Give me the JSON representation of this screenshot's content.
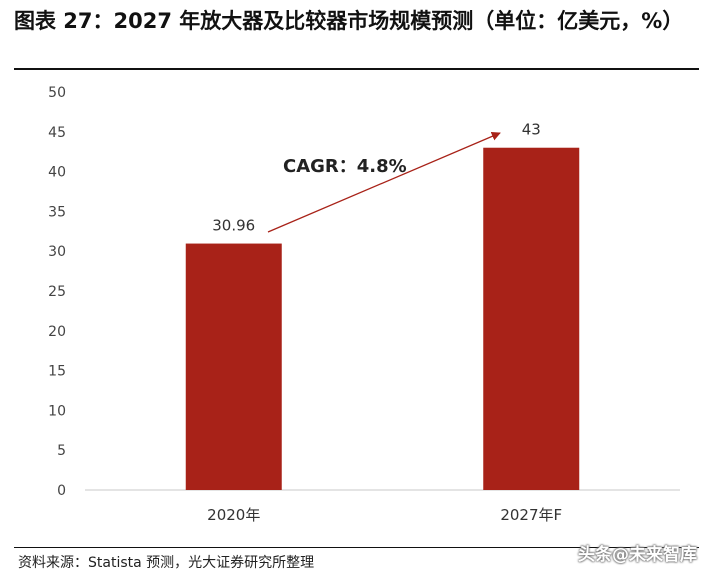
{
  "title": "图表 27：2027 年放大器及比较器市场规模预测（单位：亿美元，%）",
  "source": "资料来源：Statista 预测，光大证券研究所整理",
  "watermark": "头条@未来智库",
  "colors": {
    "bar": "#A82218",
    "arrow": "#A82218",
    "axis": "#C8C8C8"
  },
  "chart_data": {
    "type": "bar",
    "categories": [
      "2020年",
      "2027年F"
    ],
    "values": [
      30.96,
      43
    ],
    "value_labels": [
      "30.96",
      "43"
    ],
    "ylim": [
      0,
      50
    ],
    "yticks": [
      "0",
      "5",
      "10",
      "15",
      "20",
      "25",
      "30",
      "35",
      "40",
      "45",
      "50"
    ],
    "grid": false,
    "annotation": "CAGR：4.8%"
  }
}
